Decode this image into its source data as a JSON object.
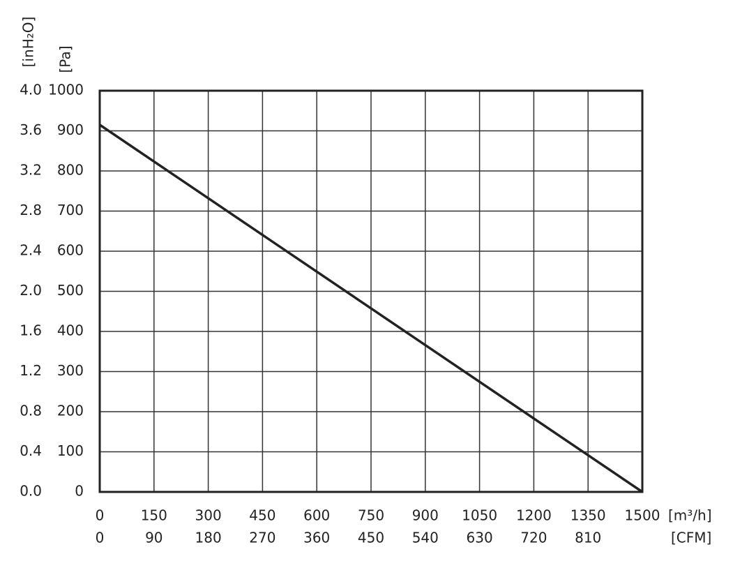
{
  "chart_data": {
    "type": "line",
    "xlabel": "[m³/h]",
    "x2label": "[CFM]",
    "ylabel": "[Pa]",
    "y2label": "[inH₂O]",
    "x": [
      0,
      1500
    ],
    "series": [
      {
        "color": "#222222",
        "values": [
          915,
          0
        ]
      }
    ],
    "xlim": [
      0,
      1500
    ],
    "xticks": [
      0,
      150,
      300,
      450,
      600,
      750,
      900,
      1050,
      1200,
      1350,
      1500
    ],
    "x2lim": [
      0,
      900
    ],
    "x2ticks": [
      0,
      90,
      180,
      270,
      360,
      450,
      540,
      630,
      720,
      810
    ],
    "ylim": [
      0,
      1000
    ],
    "yticks": [
      0,
      100,
      200,
      300,
      400,
      500,
      600,
      700,
      800,
      900,
      1000
    ],
    "y2lim": [
      0,
      4
    ],
    "y2ticks": [
      {
        "value": 0,
        "label": "0.0"
      },
      0.4,
      0.8,
      1.2,
      1.6,
      {
        "value": 2,
        "label": "2.0"
      },
      2.4,
      2.8,
      3.2,
      3.6,
      {
        "value": 4,
        "label": "4.0"
      }
    ],
    "grid": true
  }
}
